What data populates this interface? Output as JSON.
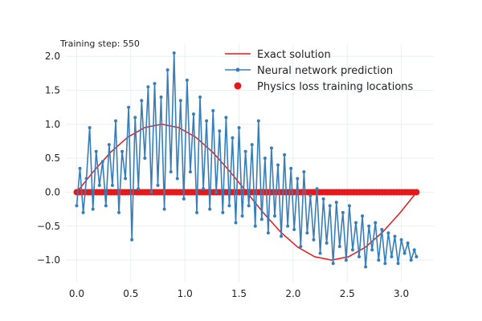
{
  "chart_data": {
    "type": "line",
    "annotation": "Training step: 550",
    "xlim": [
      -0.1,
      3.3
    ],
    "ylim": [
      -1.33,
      2.18
    ],
    "grid": true,
    "legend_position": "top-right",
    "x_ticks": [
      {
        "value": 0.0,
        "label": "0.0"
      },
      {
        "value": 0.5,
        "label": "0.5"
      },
      {
        "value": 1.0,
        "label": "1.0"
      },
      {
        "value": 1.5,
        "label": "1.5"
      },
      {
        "value": 2.0,
        "label": "2.0"
      },
      {
        "value": 2.5,
        "label": "2.5"
      },
      {
        "value": 3.0,
        "label": "3.0"
      }
    ],
    "y_ticks": [
      {
        "value": -1.0,
        "label": "−1.0"
      },
      {
        "value": -0.5,
        "label": "−0.5"
      },
      {
        "value": 0.0,
        "label": "0.0"
      },
      {
        "value": 0.5,
        "label": "0.5"
      },
      {
        "value": 1.0,
        "label": "1.0"
      },
      {
        "value": 1.5,
        "label": "1.5"
      },
      {
        "value": 2.0,
        "label": "2.0"
      }
    ],
    "series": [
      {
        "name": "Exact solution",
        "kind": "line",
        "color": "#e31a1c",
        "x": [
          0.0,
          0.157,
          0.314,
          0.471,
          0.628,
          0.785,
          0.942,
          1.1,
          1.257,
          1.414,
          1.571,
          1.728,
          1.885,
          2.042,
          2.199,
          2.356,
          2.513,
          2.67,
          2.827,
          2.985,
          3.142
        ],
        "y": [
          0.0,
          0.309,
          0.588,
          0.809,
          0.951,
          1.0,
          0.951,
          0.809,
          0.588,
          0.309,
          0.0,
          -0.309,
          -0.588,
          -0.809,
          -0.951,
          -1.0,
          -0.951,
          -0.809,
          -0.588,
          -0.309,
          0.0
        ]
      },
      {
        "name": "Neural network prediction",
        "kind": "line-markers",
        "color": "#377eb8",
        "x": [
          0.0,
          0.03,
          0.06,
          0.09,
          0.12,
          0.15,
          0.18,
          0.21,
          0.24,
          0.27,
          0.3,
          0.33,
          0.36,
          0.39,
          0.42,
          0.45,
          0.48,
          0.51,
          0.54,
          0.57,
          0.6,
          0.63,
          0.66,
          0.69,
          0.72,
          0.75,
          0.78,
          0.81,
          0.84,
          0.87,
          0.9,
          0.93,
          0.96,
          0.99,
          1.02,
          1.05,
          1.08,
          1.11,
          1.14,
          1.17,
          1.2,
          1.23,
          1.26,
          1.29,
          1.32,
          1.35,
          1.38,
          1.41,
          1.44,
          1.47,
          1.5,
          1.53,
          1.56,
          1.59,
          1.62,
          1.65,
          1.68,
          1.71,
          1.74,
          1.77,
          1.8,
          1.83,
          1.86,
          1.89,
          1.92,
          1.95,
          1.98,
          2.01,
          2.04,
          2.07,
          2.1,
          2.13,
          2.16,
          2.19,
          2.22,
          2.25,
          2.28,
          2.31,
          2.34,
          2.37,
          2.4,
          2.43,
          2.46,
          2.49,
          2.52,
          2.55,
          2.58,
          2.61,
          2.64,
          2.67,
          2.7,
          2.73,
          2.76,
          2.79,
          2.82,
          2.85,
          2.88,
          2.91,
          2.94,
          2.97,
          3.0,
          3.03,
          3.06,
          3.09,
          3.12,
          3.14
        ],
        "y": [
          -0.2,
          0.35,
          -0.3,
          0.2,
          0.95,
          -0.25,
          0.6,
          0.1,
          0.45,
          -0.2,
          0.7,
          0.1,
          1.05,
          -0.3,
          0.6,
          0.2,
          1.25,
          -0.7,
          1.1,
          0.05,
          1.35,
          0.5,
          1.55,
          0.0,
          1.6,
          0.1,
          1.4,
          -0.25,
          1.8,
          0.3,
          2.05,
          0.2,
          1.35,
          -0.1,
          1.65,
          0.3,
          1.15,
          -0.3,
          1.4,
          0.05,
          1.05,
          -0.25,
          1.2,
          0.0,
          0.9,
          -0.3,
          1.1,
          -0.2,
          0.8,
          -0.45,
          0.95,
          -0.35,
          0.6,
          -0.2,
          0.7,
          -0.5,
          1.05,
          -0.4,
          0.5,
          -0.6,
          0.65,
          -0.35,
          0.4,
          -0.65,
          0.55,
          -0.5,
          0.35,
          -0.55,
          0.2,
          -0.8,
          0.3,
          -0.6,
          -0.05,
          -0.7,
          0.05,
          -0.9,
          -0.1,
          -0.75,
          -0.2,
          -1.05,
          -0.15,
          -0.8,
          -0.3,
          -1.0,
          -0.2,
          -0.85,
          -0.45,
          -0.95,
          -0.35,
          -1.1,
          -0.5,
          -0.85,
          -0.45,
          -1.0,
          -0.55,
          -1.05,
          -0.6,
          -0.95,
          -0.65,
          -1.05,
          -0.7,
          -0.9,
          -0.75,
          -1.0,
          -0.85,
          -0.95
        ]
      },
      {
        "name": "Physics loss training locations",
        "kind": "scatter",
        "color": "#e31a1c",
        "x_range": [
          0.0,
          3.14
        ],
        "y": 0.0,
        "count": 120
      }
    ]
  }
}
